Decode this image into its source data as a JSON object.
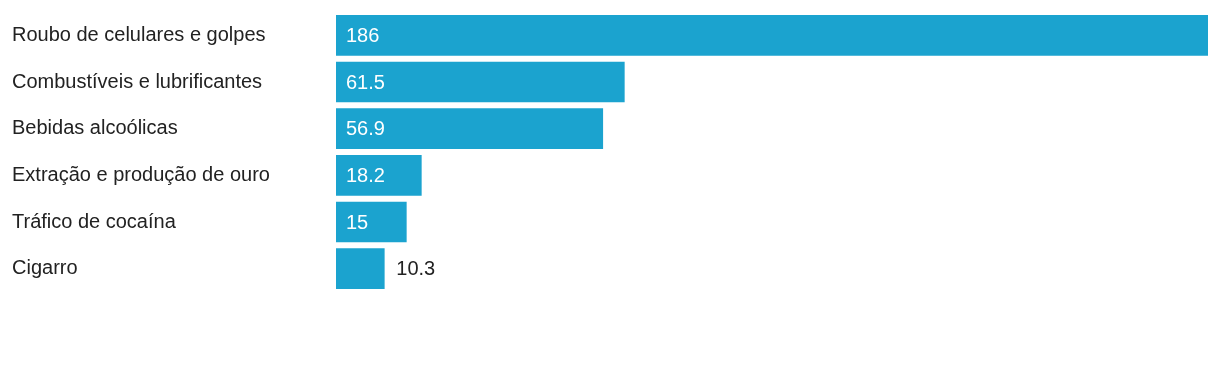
{
  "chart_data": {
    "type": "bar",
    "orientation": "horizontal",
    "categories": [
      "Roubo de celulares e golpes",
      "Combustíveis e lubrificantes",
      "Bebidas alcoólicas",
      "Extração e produção de ouro",
      "Tráfico de cocaína",
      "Cigarro"
    ],
    "values": [
      186,
      61.5,
      56.9,
      18.2,
      15,
      10.3
    ],
    "color": "#1ba3cf",
    "data_labels": true,
    "legend": false,
    "tick_labels": "y"
  }
}
